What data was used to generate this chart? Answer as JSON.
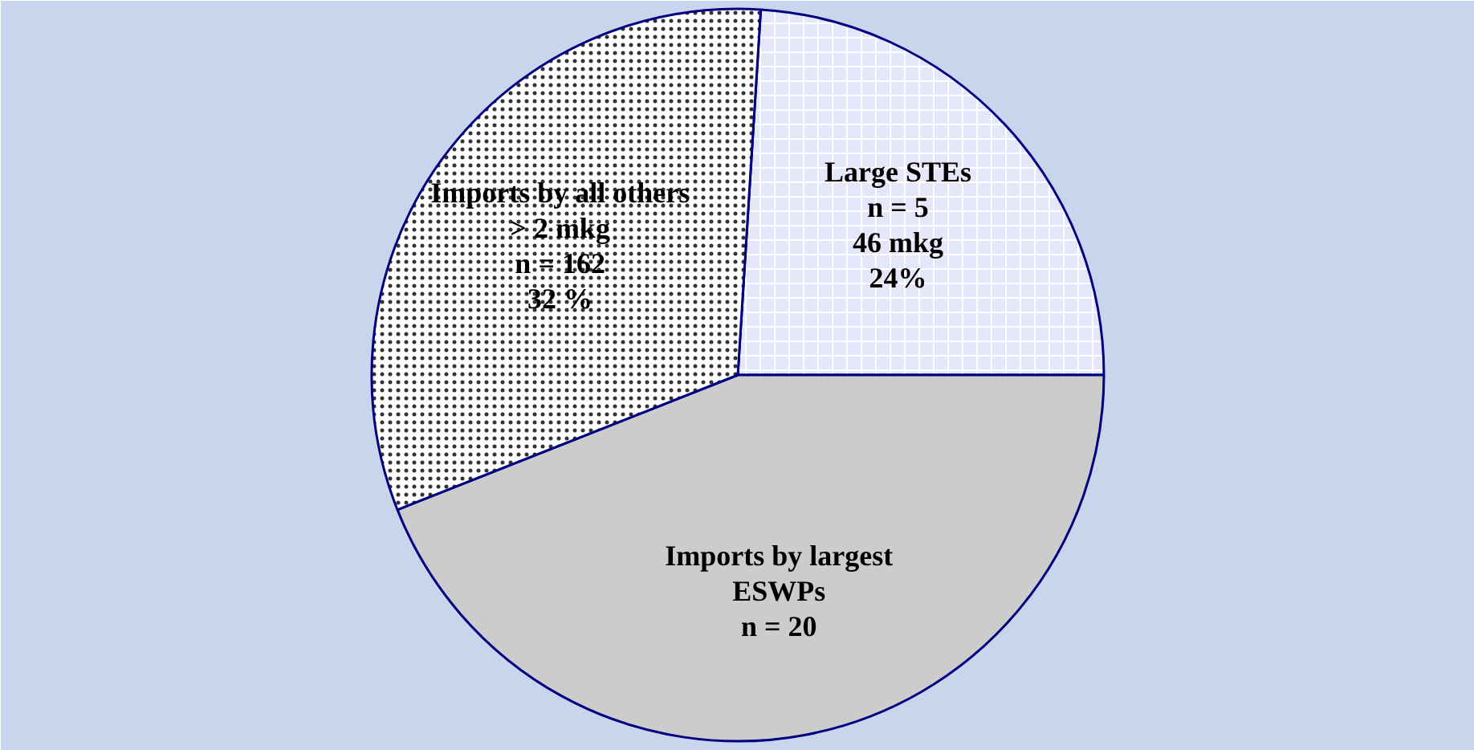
{
  "chart_data": {
    "type": "pie",
    "categories": [
      "Large STEs\nn = 5\n46 mkg",
      "Imports by largest\nESWPs\nn = 20",
      "Imports by all others\n> 2 mkg\nn = 162"
    ],
    "values": [
      24,
      44,
      32
    ],
    "value_labels": [
      "24%",
      null,
      "32 %"
    ],
    "colors": [
      "#e6e6fa",
      "#cccccc",
      "#ffffff"
    ],
    "legend": false
  }
}
